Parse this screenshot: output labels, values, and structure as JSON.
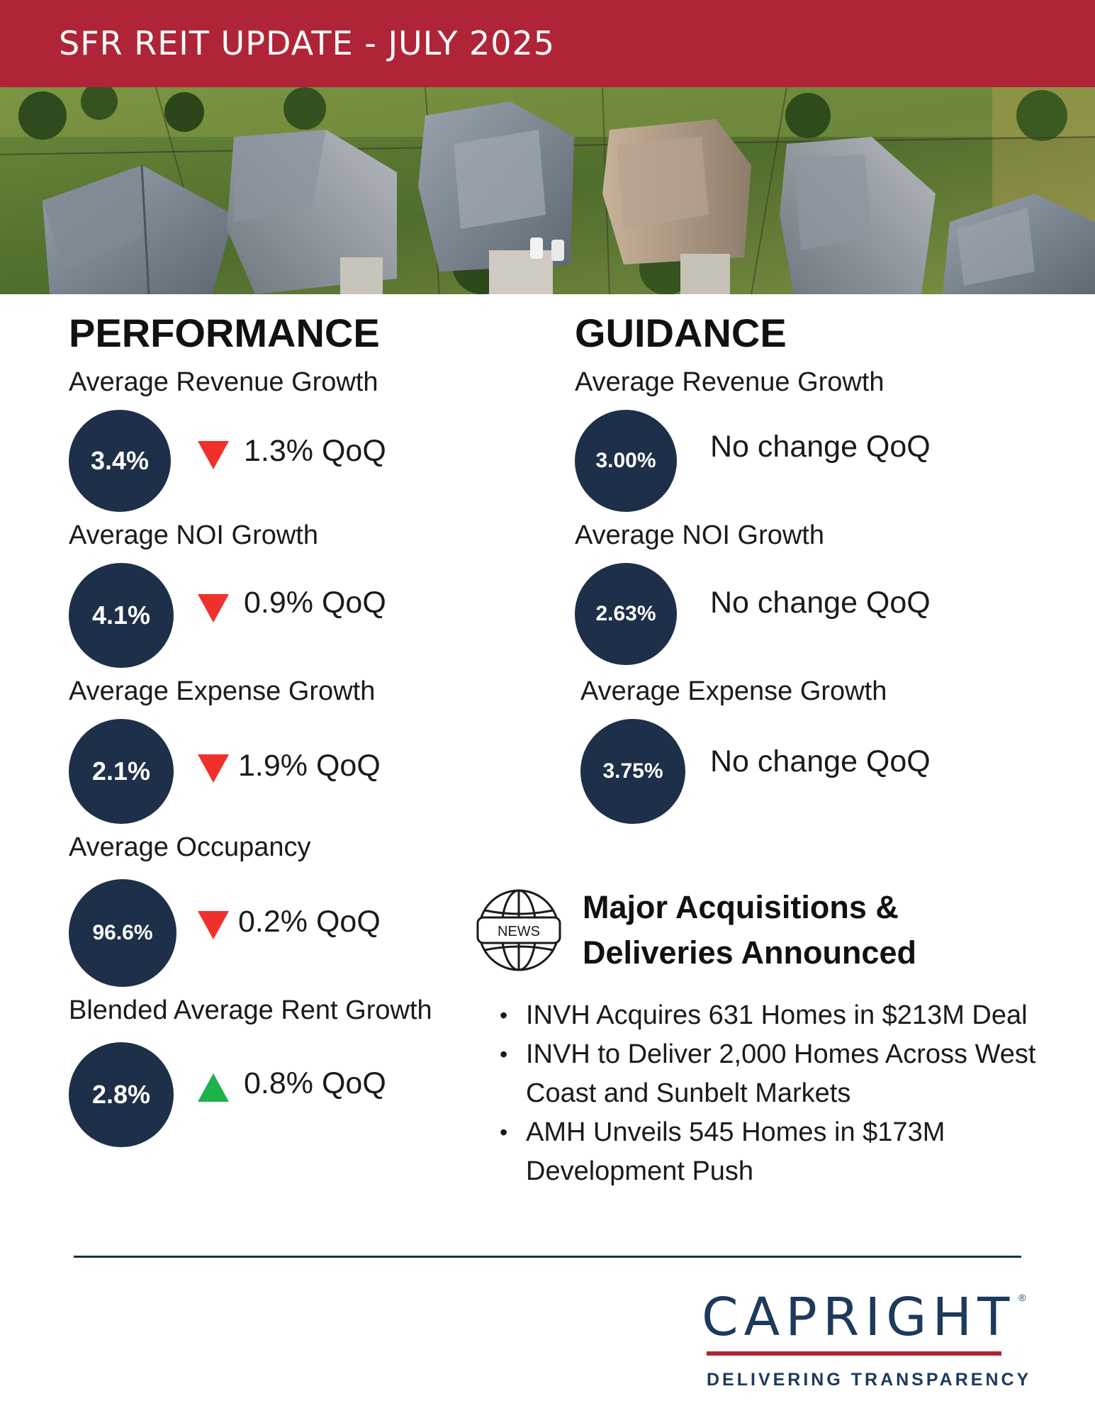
{
  "header": {
    "title": "SFR REIT UPDATE - JULY 2025"
  },
  "performance": {
    "heading": "PERFORMANCE",
    "metrics": [
      {
        "label": "Average Revenue Growth",
        "value": "3.4%",
        "direction": "down",
        "change": "1.3% QoQ"
      },
      {
        "label": "Average NOI Growth",
        "value": "4.1%",
        "direction": "down",
        "change": "0.9% QoQ"
      },
      {
        "label": "Average Expense Growth",
        "value": "2.1%",
        "direction": "down",
        "change": "1.9% QoQ"
      },
      {
        "label": "Average Occupancy",
        "value": "96.6%",
        "direction": "down",
        "change": "0.2% QoQ"
      },
      {
        "label": "Blended Average Rent Growth",
        "value": "2.8%",
        "direction": "up",
        "change": "0.8% QoQ"
      }
    ]
  },
  "guidance": {
    "heading": "GUIDANCE",
    "metrics": [
      {
        "label": "Average Revenue Growth",
        "value": "3.00%",
        "change": "No change QoQ"
      },
      {
        "label": "Average NOI Growth",
        "value": "2.63%",
        "change": "No change QoQ"
      },
      {
        "label": "Average Expense Growth",
        "value": "3.75%",
        "change": "No change QoQ"
      }
    ]
  },
  "news": {
    "icon_label": "NEWS",
    "heading_line1": "Major Acquisitions &",
    "heading_line2": "Deliveries Announced",
    "items": [
      "INVH Acquires 631 Homes in $213M Deal",
      "INVH to Deliver 2,000 Homes Across West Coast and Sunbelt Markets",
      "AMH Unveils 545 Homes in $173M Development Push"
    ]
  },
  "logo": {
    "wordmark": "CAPRIGHT",
    "registered": "®",
    "tagline": "DELIVERING TRANSPARENCY"
  },
  "colors": {
    "banner": "#b02437",
    "circle": "#1d2f49",
    "down": "#f0312b",
    "up": "#1db24a"
  }
}
